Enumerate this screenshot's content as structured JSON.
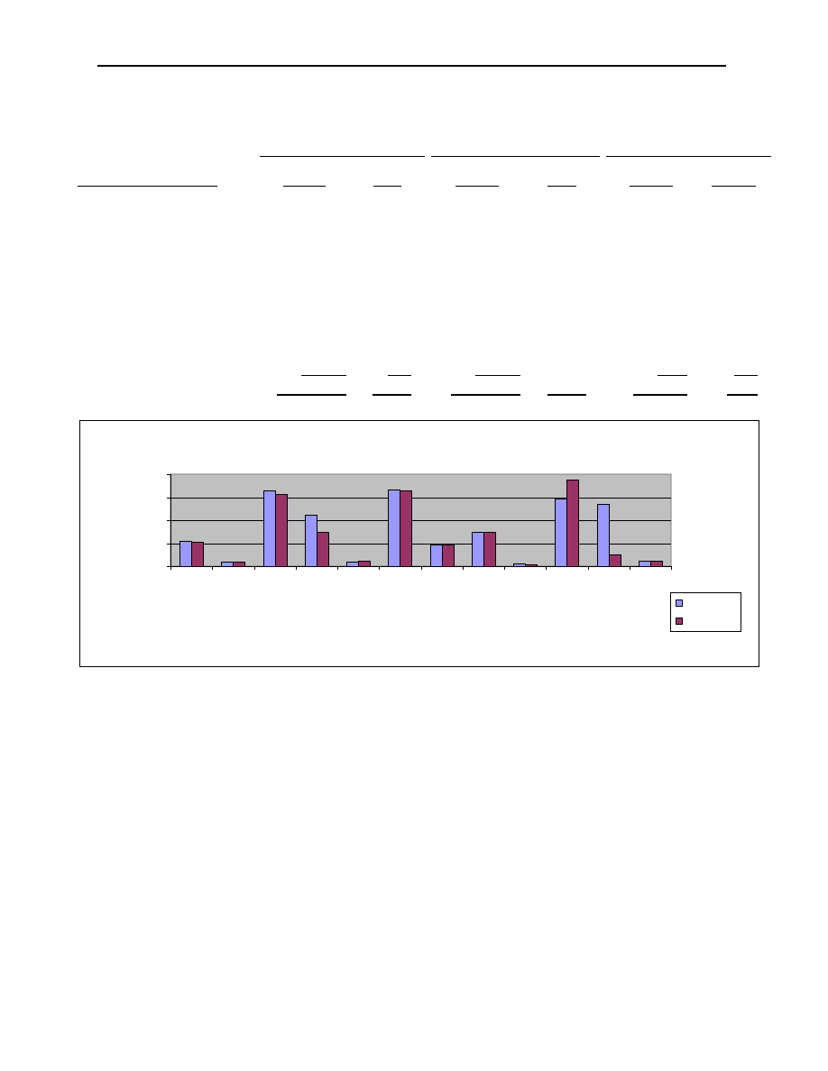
{
  "chart_data": {
    "type": "bar",
    "title": "",
    "xlabel": "",
    "ylabel": "",
    "categories": [
      "",
      "",
      "",
      "",
      "",
      "",
      "",
      "",
      "",
      "",
      "",
      ""
    ],
    "series": [
      {
        "color": "#9999ff",
        "values": [
          1.1,
          0.2,
          3.3,
          2.25,
          0.2,
          3.35,
          0.95,
          1.5,
          0.12,
          2.95,
          2.7,
          0.22
        ]
      },
      {
        "color": "#993366",
        "values": [
          1.05,
          0.2,
          3.15,
          1.48,
          0.22,
          3.28,
          0.95,
          1.5,
          0.08,
          3.75,
          0.5,
          0.22
        ]
      }
    ],
    "ylim": [
      0,
      4
    ],
    "yticks": [
      0,
      1,
      2,
      3,
      4
    ],
    "grid": true,
    "plot_background": "#c0c0c0",
    "legend": "right"
  }
}
